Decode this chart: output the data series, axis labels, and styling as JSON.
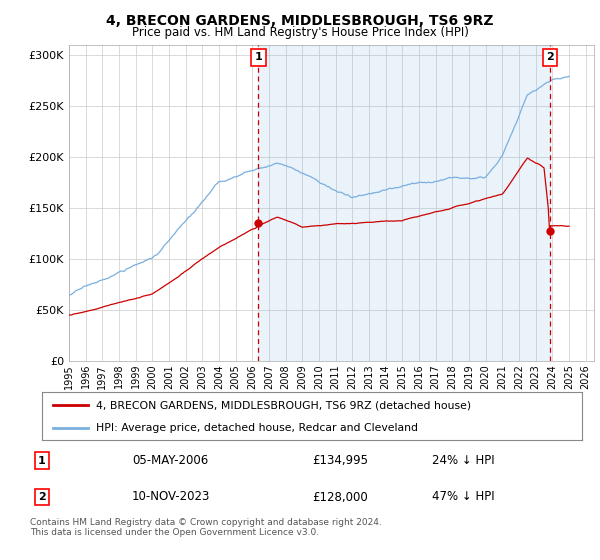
{
  "title": "4, BRECON GARDENS, MIDDLESBROUGH, TS6 9RZ",
  "subtitle": "Price paid vs. HM Land Registry's House Price Index (HPI)",
  "hpi_color": "#7aafe0",
  "hpi_fill_color": "#ddeeff",
  "price_color": "#cc0000",
  "vline_color": "#cc0000",
  "bg_color": "#ffffff",
  "grid_color": "#cccccc",
  "ylim": [
    0,
    310000
  ],
  "yticks": [
    0,
    50000,
    100000,
    150000,
    200000,
    250000,
    300000
  ],
  "ytick_labels": [
    "£0",
    "£50K",
    "£100K",
    "£150K",
    "£200K",
    "£250K",
    "£300K"
  ],
  "xlim_start": 1995.0,
  "xlim_end": 2026.5,
  "sale1_date": 2006.37,
  "sale1_price": 134995,
  "sale1_label": "1",
  "sale2_date": 2023.87,
  "sale2_price": 128000,
  "sale2_label": "2",
  "legend_line1": "4, BRECON GARDENS, MIDDLESBROUGH, TS6 9RZ (detached house)",
  "legend_line2": "HPI: Average price, detached house, Redcar and Cleveland",
  "table_row1": [
    "1",
    "05-MAY-2006",
    "£134,995",
    "24% ↓ HPI"
  ],
  "table_row2": [
    "2",
    "10-NOV-2023",
    "£128,000",
    "47% ↓ HPI"
  ],
  "footer": "Contains HM Land Registry data © Crown copyright and database right 2024.\nThis data is licensed under the Open Government Licence v3.0.",
  "xlabel_years": [
    1995,
    1996,
    1997,
    1998,
    1999,
    2000,
    2001,
    2002,
    2003,
    2004,
    2005,
    2006,
    2007,
    2008,
    2009,
    2010,
    2011,
    2012,
    2013,
    2014,
    2015,
    2016,
    2017,
    2018,
    2019,
    2020,
    2021,
    2022,
    2023,
    2024,
    2025,
    2026
  ]
}
